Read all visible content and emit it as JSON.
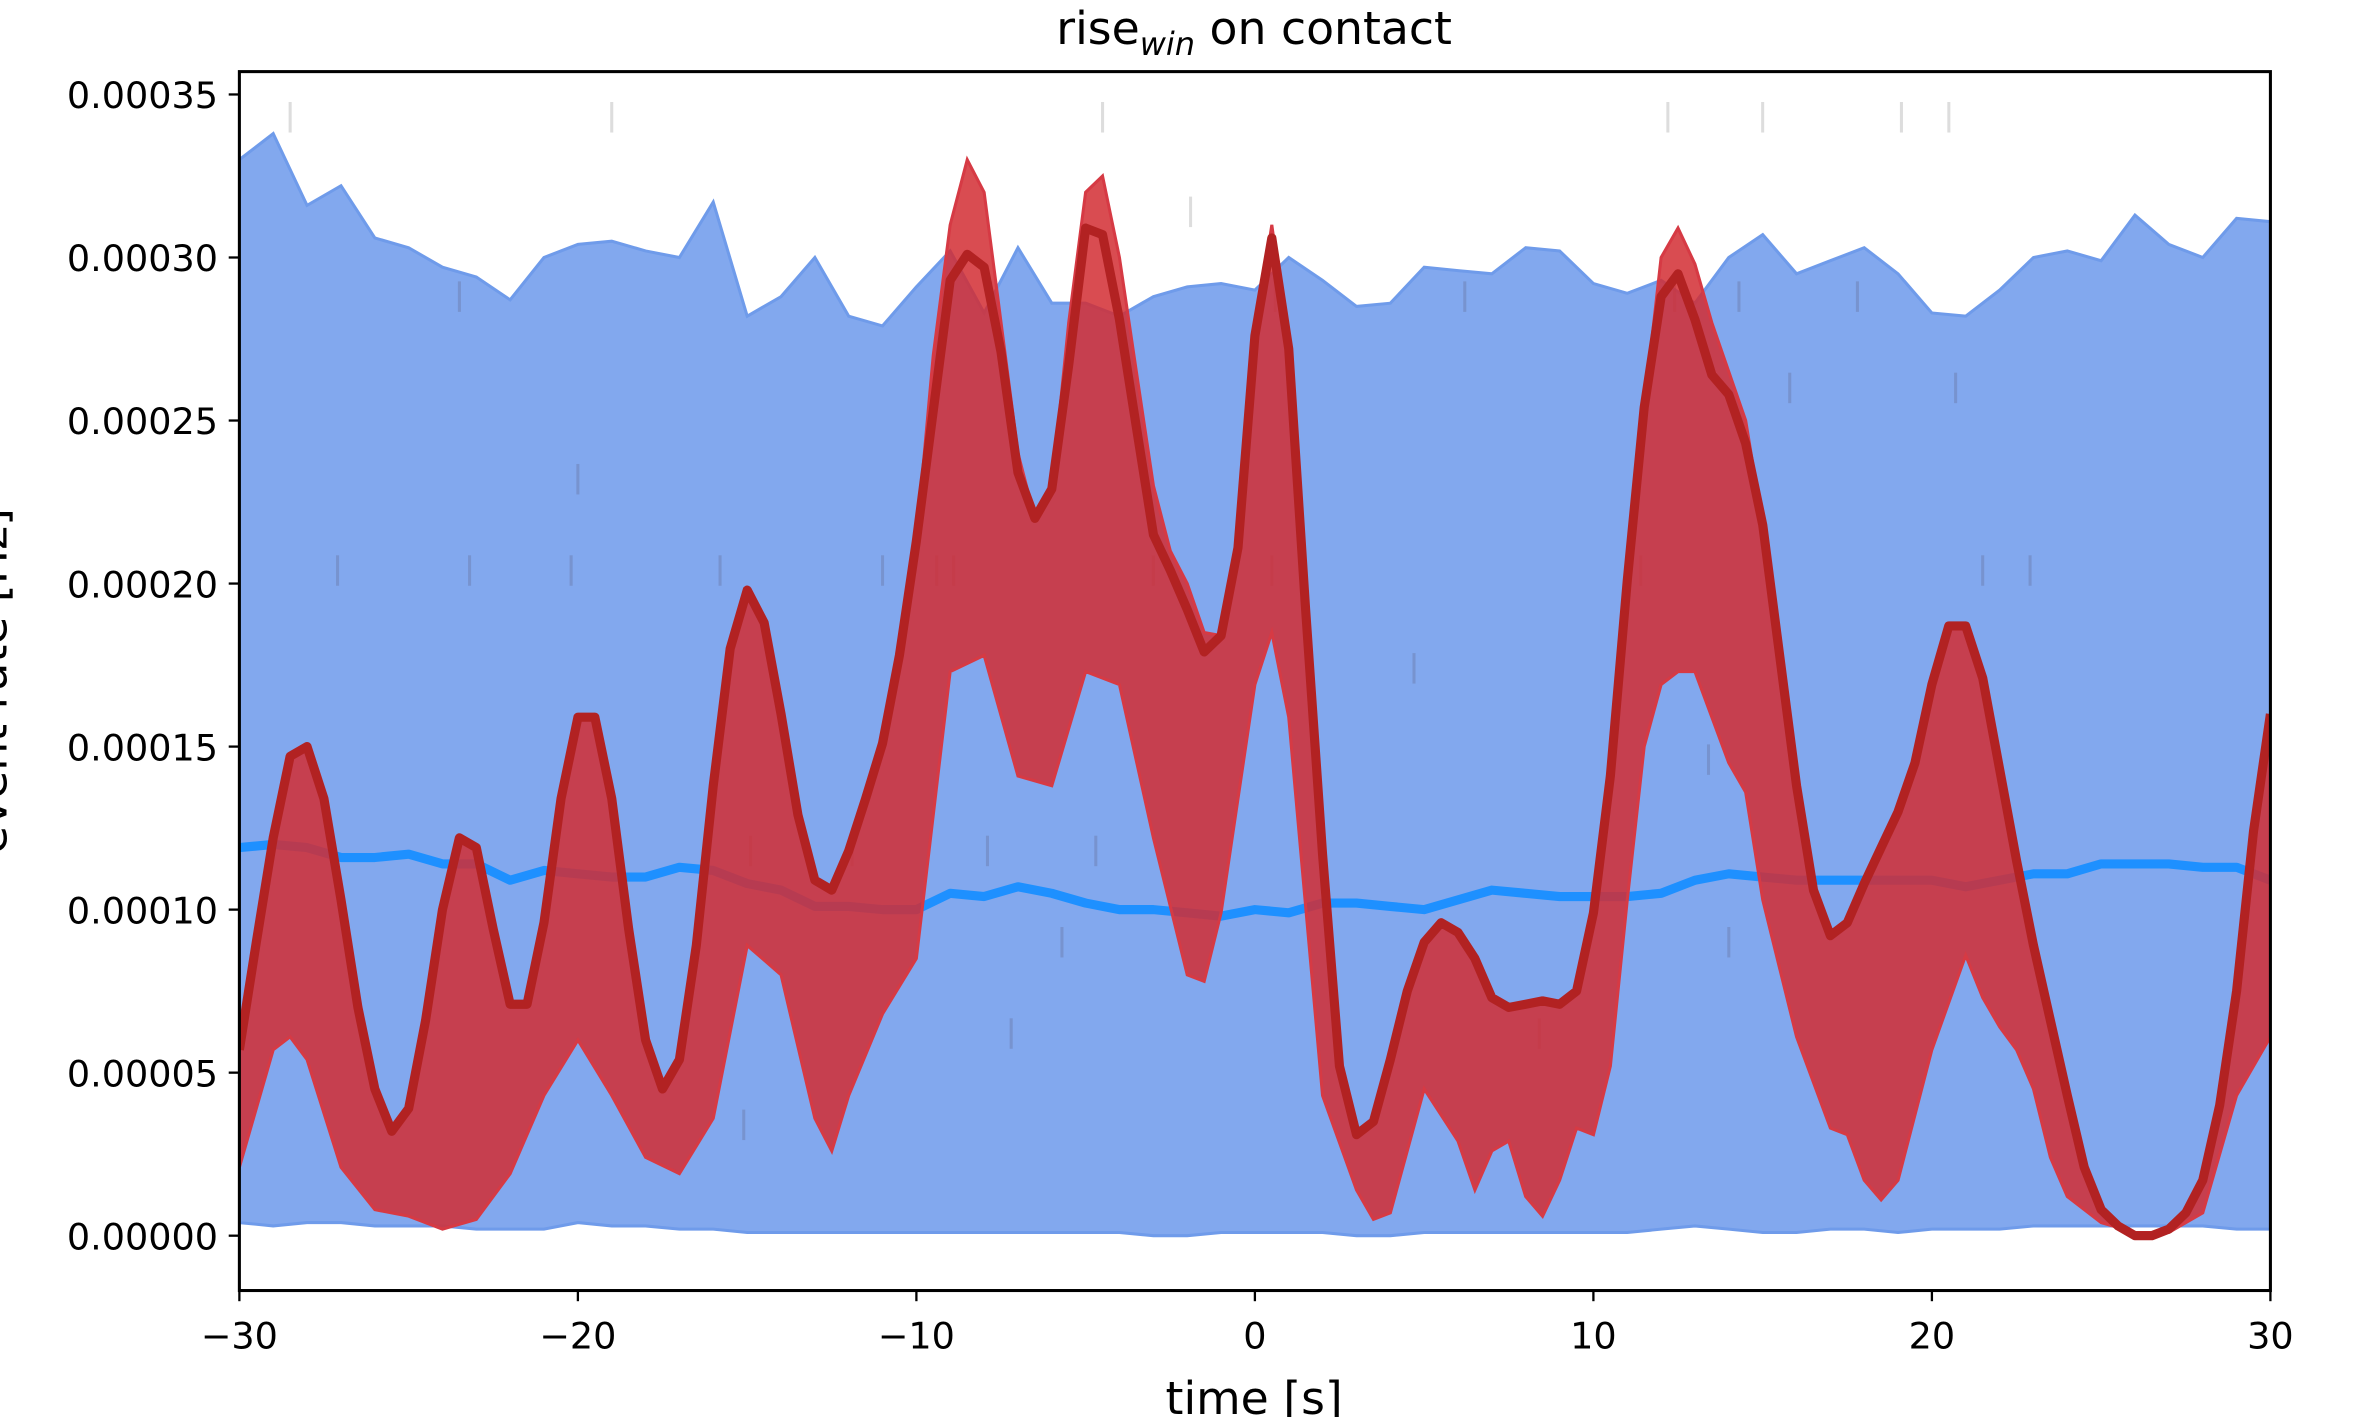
{
  "chart_data": {
    "type": "line",
    "title": {
      "main": "rise",
      "subscript": "win",
      "suffix": " on contact"
    },
    "xlabel": "time [s]",
    "ylabel": "event rate [Hz]",
    "xlim": [
      -30,
      30
    ],
    "ylim": [
      -1.7e-05,
      0.000357
    ],
    "y_unit_multiplier": 1e-05,
    "grid": false,
    "x_ticks": [
      -30,
      -20,
      -10,
      0,
      10,
      20,
      30
    ],
    "x_tick_labels": [
      "−30",
      "−20",
      "−10",
      "0",
      "10",
      "20",
      "30"
    ],
    "y_ticks": [
      0,
      5,
      10,
      15,
      20,
      25,
      30,
      35
    ],
    "y_tick_labels": [
      "0.00000",
      "0.00005",
      "0.00010",
      "0.00015",
      "0.00020",
      "0.00025",
      "0.00030",
      "0.00035"
    ],
    "colors": {
      "blue_band": "#82a8ee",
      "blue_band_edge": "#6f9bea",
      "blue_mean": "#1e90ff",
      "red_band": "#d22d32",
      "red_band_edge": "#d63a44",
      "red_mean": "#b22222",
      "event_light": "#dddddd",
      "event_dark": "#6a7ba8"
    },
    "series": [
      {
        "name": "baseline band upper",
        "x_start": -30,
        "x_step": 1,
        "values": [
          33,
          33.8,
          31.6,
          32.2,
          30.6,
          30.3,
          29.7,
          29.4,
          28.7,
          30,
          30.4,
          30.5,
          30.2,
          30,
          31.7,
          28.2,
          28.8,
          30,
          28.2,
          27.9,
          29.1,
          30.2,
          28.3,
          30.3,
          28.6,
          28.6,
          28.2,
          28.8,
          29.1,
          29.2,
          29,
          30,
          29.3,
          28.5,
          28.6,
          29.7,
          29.6,
          29.5,
          30.3,
          30.2,
          29.2,
          28.9,
          29.3,
          28.6,
          30,
          30.7,
          29.5,
          29.9,
          30.3,
          29.5,
          28.3,
          28.2,
          29,
          30,
          30.2,
          29.9,
          31.3,
          30.4,
          30,
          31.2,
          31.1
        ]
      },
      {
        "name": "baseline band lower",
        "x_start": -30,
        "x_step": 1,
        "values": [
          0.4,
          0.3,
          0.4,
          0.4,
          0.3,
          0.3,
          0.3,
          0.2,
          0.2,
          0.2,
          0.4,
          0.3,
          0.3,
          0.2,
          0.2,
          0.1,
          0.1,
          0.1,
          0.1,
          0.1,
          0.1,
          0.1,
          0.1,
          0.1,
          0.1,
          0.1,
          0.1,
          0,
          0,
          0.1,
          0.1,
          0.1,
          0.1,
          0,
          0,
          0.1,
          0.1,
          0.1,
          0.1,
          0.1,
          0.1,
          0.1,
          0.2,
          0.3,
          0.2,
          0.1,
          0.1,
          0.2,
          0.2,
          0.1,
          0.2,
          0.2,
          0.2,
          0.3,
          0.3,
          0.3,
          0.3,
          0.3,
          0.3,
          0.2,
          0.2
        ]
      },
      {
        "name": "baseline mean",
        "x_start": -30,
        "x_step": 1,
        "values": [
          11.9,
          12,
          11.9,
          11.6,
          11.6,
          11.7,
          11.4,
          11.4,
          10.9,
          11.2,
          11.1,
          11,
          11,
          11.3,
          11.2,
          10.8,
          10.6,
          10.1,
          10.1,
          10,
          10,
          10.5,
          10.4,
          10.7,
          10.5,
          10.2,
          10,
          10,
          9.9,
          9.8,
          10,
          9.9,
          10.2,
          10.2,
          10.1,
          10,
          10.3,
          10.6,
          10.5,
          10.4,
          10.4,
          10.4,
          10.5,
          10.9,
          11.1,
          11,
          10.9,
          10.9,
          10.9,
          10.9,
          10.9,
          10.7,
          10.9,
          11.1,
          11.1,
          11.4,
          11.4,
          11.4,
          11.3,
          11.3,
          10.9
        ]
      },
      {
        "name": "contact band upper",
        "x_start": -30,
        "x_step": 0.5,
        "values": [
          5.7,
          9,
          12.2,
          14.7,
          15,
          13.4,
          10.3,
          7,
          4.5,
          3.2,
          3.9,
          6.6,
          10,
          12.2,
          11.9,
          9.4,
          7.1,
          7.1,
          9.6,
          13.4,
          15.9,
          15.9,
          13.4,
          9.4,
          6,
          4.5,
          5.4,
          8.9,
          13.8,
          18,
          19.8,
          18.8,
          16,
          12.9,
          10.9,
          10.6,
          11.8,
          13.4,
          15.1,
          17.8,
          21.3,
          27,
          31,
          33,
          32,
          28,
          24,
          22,
          22.9,
          28,
          32,
          32.5,
          30,
          26.5,
          23,
          21,
          20,
          18.5,
          18.4,
          21.1,
          27.6,
          31,
          27.2,
          19.2,
          11.7,
          5.2,
          3.1,
          3.5,
          5.4,
          7.5,
          9,
          9.6,
          9.3,
          8.5,
          7.3,
          7,
          7.1,
          7.2,
          7.1,
          7.5,
          9.9,
          14.1,
          20.1,
          25.4,
          30,
          30.9,
          29.8,
          28,
          26.5,
          25,
          21.8,
          17.8,
          13.8,
          10.6,
          9.2,
          9.6,
          10.8,
          11.9,
          13,
          14.5,
          16.9,
          18.7,
          18.7,
          17.1,
          14.3,
          11.5,
          8.9,
          6.6,
          4.3,
          2.1,
          0.8,
          0.3,
          0,
          0,
          0.2,
          0.7,
          1.7,
          4,
          7.5,
          12.4,
          16
        ]
      },
      {
        "name": "contact band lower",
        "x": [
          -30,
          -29,
          -28.5,
          -28,
          -27,
          -26,
          -25,
          -24,
          -23,
          -22,
          -21,
          -20,
          -19,
          -18,
          -17,
          -16,
          -15,
          -14,
          -13,
          -12.5,
          -12,
          -11,
          -10,
          -9,
          -8,
          -7,
          -6,
          -5,
          -4,
          -3,
          -2,
          -1.5,
          -1,
          0,
          0.5,
          1,
          2,
          3,
          3.5,
          4,
          5,
          6,
          6.5,
          7,
          7.5,
          8,
          8.5,
          9,
          9.5,
          10,
          10.5,
          11,
          11.5,
          12,
          12.5,
          13,
          14,
          14.5,
          15,
          16,
          17,
          17.5,
          18,
          18.5,
          19,
          20,
          21,
          21.5,
          22,
          22.5,
          23,
          23.5,
          24,
          25,
          26,
          27,
          28,
          29,
          30
        ],
        "values": [
          2.1,
          5.7,
          6.1,
          5.4,
          2.1,
          0.8,
          0.6,
          0.2,
          0.5,
          1.9,
          4.3,
          6,
          4.3,
          2.4,
          1.9,
          3.6,
          8.9,
          8,
          3.6,
          2.6,
          4.3,
          6.8,
          8.5,
          17.3,
          17.8,
          14.1,
          13.8,
          17.3,
          16.9,
          12.2,
          8,
          7.8,
          9.9,
          16.9,
          18.5,
          15.9,
          4.3,
          1.4,
          0.5,
          0.7,
          4.5,
          2.9,
          1.4,
          2.6,
          2.9,
          1.2,
          0.6,
          1.7,
          3.3,
          3.1,
          5.2,
          10.3,
          15,
          16.9,
          17.3,
          17.3,
          14.5,
          13.6,
          10.3,
          6.1,
          3.3,
          3.1,
          1.7,
          1.1,
          1.7,
          5.7,
          8.6,
          7.3,
          6.4,
          5.7,
          4.5,
          2.4,
          1.2,
          0.4,
          0.1,
          0.1,
          0.7,
          4.3,
          6.1
        ]
      },
      {
        "name": "contact mean",
        "x_start": -30,
        "x_step": 0.5,
        "values": [
          5.7,
          9,
          12.2,
          14.7,
          15,
          13.4,
          10.3,
          7,
          4.5,
          3.2,
          3.9,
          6.6,
          10,
          12.2,
          11.9,
          9.4,
          7.1,
          7.1,
          9.6,
          13.4,
          15.9,
          15.9,
          13.4,
          9.4,
          6,
          4.5,
          5.4,
          8.9,
          13.8,
          18,
          19.8,
          18.8,
          16,
          12.9,
          10.9,
          10.6,
          11.8,
          13.4,
          15.1,
          17.8,
          21.3,
          25.3,
          29.3,
          30.1,
          29.7,
          27.1,
          23.4,
          22,
          22.9,
          26.7,
          30.9,
          30.7,
          28.1,
          24.8,
          21.5,
          20.4,
          19.2,
          17.9,
          18.4,
          21.1,
          27.6,
          30.6,
          27.2,
          19.2,
          11.7,
          5.2,
          3.1,
          3.5,
          5.4,
          7.5,
          9,
          9.6,
          9.3,
          8.5,
          7.3,
          7,
          7.1,
          7.2,
          7.1,
          7.5,
          9.9,
          14.1,
          20.1,
          25.4,
          28.8,
          29.5,
          28.1,
          26.4,
          25.8,
          24.3,
          21.8,
          17.8,
          13.8,
          10.6,
          9.2,
          9.6,
          10.8,
          11.9,
          13,
          14.5,
          16.9,
          18.7,
          18.7,
          17.1,
          14.3,
          11.5,
          8.9,
          6.6,
          4.3,
          2.1,
          0.8,
          0.3,
          0,
          0,
          0.2,
          0.7,
          1.7,
          4,
          7.5,
          12.4,
          16
        ]
      }
    ],
    "events": [
      {
        "t": -28.5,
        "level": 34.3,
        "tone": "light"
      },
      {
        "t": -19,
        "level": 34.3,
        "tone": "light"
      },
      {
        "t": -4.5,
        "level": 34.3,
        "tone": "light"
      },
      {
        "t": 12.2,
        "level": 34.3,
        "tone": "light"
      },
      {
        "t": 15,
        "level": 34.3,
        "tone": "light"
      },
      {
        "t": 19.1,
        "level": 34.3,
        "tone": "light"
      },
      {
        "t": 20.5,
        "level": 34.3,
        "tone": "light"
      },
      {
        "t": -1.9,
        "level": 31.4,
        "tone": "light"
      },
      {
        "t": -23.5,
        "level": 28.8,
        "tone": "dark"
      },
      {
        "t": -7.8,
        "level": 28.8,
        "tone": "dark"
      },
      {
        "t": 0.6,
        "level": 28.8,
        "tone": "dark"
      },
      {
        "t": 6.2,
        "level": 28.8,
        "tone": "dark"
      },
      {
        "t": 12.4,
        "level": 28.8,
        "tone": "dark"
      },
      {
        "t": 14.3,
        "level": 28.8,
        "tone": "dark"
      },
      {
        "t": 17.8,
        "level": 28.8,
        "tone": "dark"
      },
      {
        "t": 15.8,
        "level": 26,
        "tone": "dark"
      },
      {
        "t": 20.7,
        "level": 26,
        "tone": "dark"
      },
      {
        "t": -20,
        "level": 23.2,
        "tone": "dark"
      },
      {
        "t": -27.1,
        "level": 20.4,
        "tone": "dark"
      },
      {
        "t": -23.2,
        "level": 20.4,
        "tone": "dark"
      },
      {
        "t": -20.2,
        "level": 20.4,
        "tone": "dark"
      },
      {
        "t": -15.8,
        "level": 20.4,
        "tone": "dark"
      },
      {
        "t": -11,
        "level": 20.4,
        "tone": "dark"
      },
      {
        "t": -9.4,
        "level": 20.4,
        "tone": "dark"
      },
      {
        "t": -8.9,
        "level": 20.4,
        "tone": "dark"
      },
      {
        "t": -3,
        "level": 20.4,
        "tone": "dark"
      },
      {
        "t": 0.5,
        "level": 20.4,
        "tone": "dark"
      },
      {
        "t": 11.4,
        "level": 20.4,
        "tone": "dark"
      },
      {
        "t": 21.5,
        "level": 20.4,
        "tone": "dark"
      },
      {
        "t": 22.9,
        "level": 20.4,
        "tone": "dark"
      },
      {
        "t": 4.7,
        "level": 17.4,
        "tone": "dark"
      },
      {
        "t": 13.4,
        "level": 14.6,
        "tone": "dark"
      },
      {
        "t": -14.9,
        "level": 11.8,
        "tone": "dark"
      },
      {
        "t": -11.9,
        "level": 11.8,
        "tone": "dark"
      },
      {
        "t": -7.9,
        "level": 11.8,
        "tone": "dark"
      },
      {
        "t": -4.7,
        "level": 11.8,
        "tone": "dark"
      },
      {
        "t": -5.7,
        "level": 9,
        "tone": "dark"
      },
      {
        "t": 14,
        "level": 9,
        "tone": "dark"
      },
      {
        "t": -7.2,
        "level": 6.2,
        "tone": "dark"
      },
      {
        "t": 8.4,
        "level": 6.2,
        "tone": "dark"
      },
      {
        "t": -15.1,
        "level": 3.4,
        "tone": "dark"
      }
    ]
  }
}
